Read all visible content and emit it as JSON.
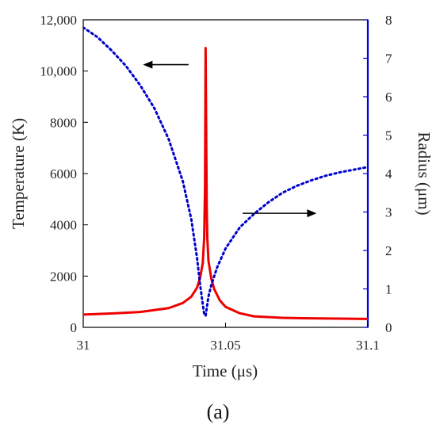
{
  "chart_data": {
    "type": "line",
    "xlabel": "Time (μs)",
    "ylabel_left": "Temperature (K)",
    "ylabel_right": "Radius (μm)",
    "caption": "(a)",
    "xlim": [
      31,
      31.1
    ],
    "ylim_left": [
      0,
      12000
    ],
    "ylim_right": [
      0,
      8
    ],
    "x_ticks": [
      "31",
      "31.05",
      "31.1"
    ],
    "y_left_ticks": [
      "0",
      "2000",
      "4000",
      "6000",
      "8000",
      "10,000",
      "12,000"
    ],
    "y_right_ticks": [
      "0",
      "1",
      "2",
      "3",
      "4",
      "5",
      "6",
      "7",
      "8"
    ],
    "grid": false,
    "colors": {
      "axis_right": "#0000dd",
      "temperature": "#ee0000",
      "radius": "#0000cc",
      "arrow": "#000000"
    },
    "series": [
      {
        "axis": "left",
        "style": "solid",
        "x": [
          31.0,
          31.01,
          31.02,
          31.03,
          31.035,
          31.038,
          31.04,
          31.041,
          31.042,
          31.0425,
          31.0428,
          31.043,
          31.0432,
          31.0434,
          31.0436,
          31.044,
          31.045,
          31.046,
          31.048,
          31.05,
          31.055,
          31.06,
          31.07,
          31.08,
          31.09,
          31.1
        ],
        "values": [
          500,
          540,
          600,
          750,
          950,
          1200,
          1550,
          1900,
          2500,
          3500,
          5500,
          10900,
          7700,
          4600,
          3500,
          2600,
          1900,
          1500,
          1050,
          800,
          550,
          430,
          370,
          350,
          340,
          330
        ]
      },
      {
        "axis": "right",
        "style": "dotted",
        "x": [
          31.0,
          31.005,
          31.01,
          31.015,
          31.02,
          31.025,
          31.03,
          31.035,
          31.038,
          31.04,
          31.041,
          31.042,
          31.0425,
          31.043,
          31.0435,
          31.044,
          31.045,
          31.047,
          31.05,
          31.055,
          31.06,
          31.065,
          31.07,
          31.075,
          31.08,
          31.085,
          31.09,
          31.095,
          31.1
        ],
        "values": [
          7.8,
          7.55,
          7.2,
          6.8,
          6.3,
          5.7,
          4.9,
          3.8,
          2.8,
          1.8,
          1.15,
          0.6,
          0.35,
          0.3,
          0.55,
          0.8,
          1.1,
          1.55,
          2.05,
          2.6,
          2.95,
          3.25,
          3.5,
          3.68,
          3.82,
          3.94,
          4.03,
          4.1,
          4.17
        ]
      }
    ],
    "annotations": [
      {
        "type": "arrow",
        "direction": "left",
        "x_from": 31.037,
        "x_to": 31.021,
        "y_left": 10250
      },
      {
        "type": "arrow",
        "direction": "right",
        "x_from": 31.056,
        "x_to": 31.082,
        "y_left": 4450
      }
    ]
  }
}
